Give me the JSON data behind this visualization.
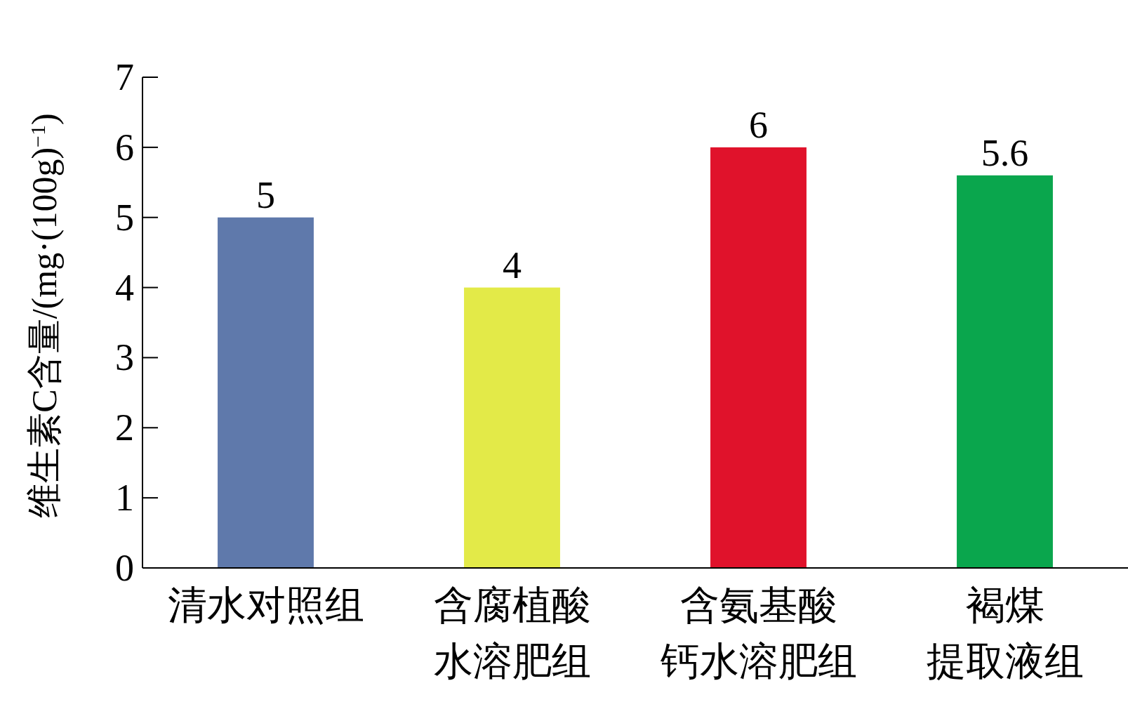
{
  "chart_data": {
    "type": "bar",
    "ylabel": "维生素C含量/(mg·(100g)$^{−1}$)",
    "categories": [
      "清水对照组",
      "含腐植酸水溶肥组",
      "含氨基酸钙水溶肥组",
      "褐煤提取液组"
    ],
    "values": [
      5,
      4,
      6,
      5.6
    ],
    "colors": [
      "#5f79ab",
      "#e3ea48",
      "#e0122b",
      "#0aa64d"
    ],
    "ylim": [
      0,
      7
    ],
    "yticks": [
      0,
      1,
      2,
      3,
      4,
      5,
      6,
      7
    ],
    "data_labels": true,
    "grid": false
  }
}
